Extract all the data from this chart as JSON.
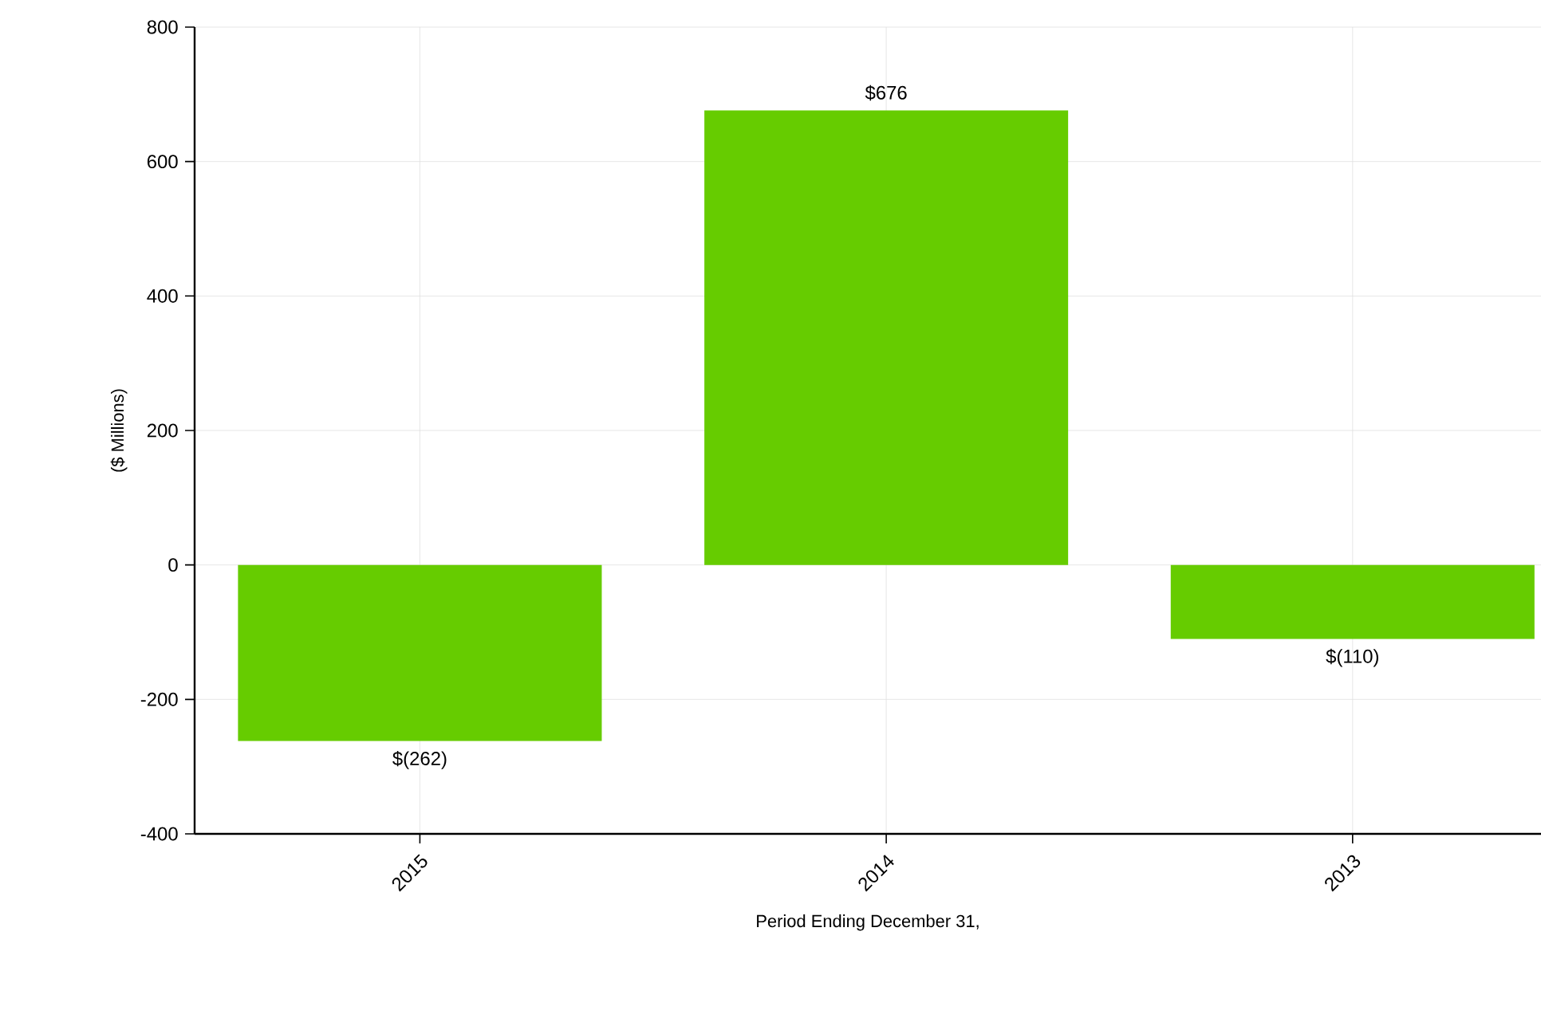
{
  "chart_data": {
    "type": "bar",
    "xlabel": "Period Ending December 31,",
    "ylabel": "($ Millions)",
    "categories": [
      "2015",
      "2014",
      "2013"
    ],
    "values": [
      -262,
      676,
      -110
    ],
    "value_labels": [
      "$(262)",
      "$676",
      "$(110)"
    ],
    "color": "#66cc00",
    "ylim": [
      -400,
      800
    ],
    "yticks": [
      -400,
      -200,
      0,
      200,
      400,
      600,
      800
    ],
    "grid": true
  }
}
